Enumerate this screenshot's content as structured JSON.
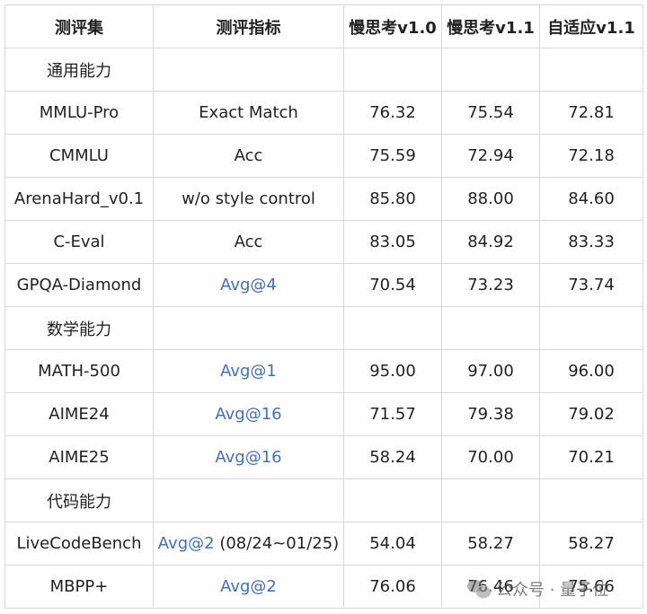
{
  "table": {
    "headers": [
      "测评集",
      "测评指标",
      "慢思考v1.0",
      "慢思考v1.1",
      "自适应v1.1"
    ],
    "rows": [
      {
        "type": "section",
        "label": "通用能力"
      },
      {
        "type": "data",
        "dataset": "MMLU-Pro",
        "metric": "Exact Match",
        "metric_link": false,
        "v10": "76.32",
        "v11": "75.54",
        "adaptive": "72.81"
      },
      {
        "type": "data",
        "dataset": "CMMLU",
        "metric": "Acc",
        "metric_link": false,
        "v10": "75.59",
        "v11": "72.94",
        "adaptive": "72.18"
      },
      {
        "type": "data",
        "dataset": "ArenaHard_v0.1",
        "metric": "w/o style control",
        "metric_link": false,
        "v10": "85.80",
        "v11": "88.00",
        "adaptive": "84.60"
      },
      {
        "type": "data",
        "dataset": "C-Eval",
        "metric": "Acc",
        "metric_link": false,
        "v10": "83.05",
        "v11": "84.92",
        "adaptive": "83.33"
      },
      {
        "type": "data",
        "dataset": "GPQA-Diamond",
        "metric": "Avg@4",
        "metric_link": true,
        "v10": "70.54",
        "v11": "73.23",
        "adaptive": "73.74"
      },
      {
        "type": "section",
        "label": "数学能力"
      },
      {
        "type": "data",
        "dataset": "MATH-500",
        "metric": "Avg@1",
        "metric_link": true,
        "v10": "95.00",
        "v11": "97.00",
        "adaptive": "96.00"
      },
      {
        "type": "data",
        "dataset": "AIME24",
        "metric": "Avg@16",
        "metric_link": true,
        "v10": "71.57",
        "v11": "79.38",
        "adaptive": "79.02"
      },
      {
        "type": "data",
        "dataset": "AIME25",
        "metric": "Avg@16",
        "metric_link": true,
        "v10": "58.24",
        "v11": "70.00",
        "adaptive": "70.21"
      },
      {
        "type": "section",
        "label": "代码能力"
      },
      {
        "type": "data",
        "dataset": "LiveCodeBench",
        "metric": "Avg@2",
        "metric_suffix": " (08/24~01/25)",
        "metric_link": true,
        "v10": "54.04",
        "v11": "58.27",
        "adaptive": "58.27"
      },
      {
        "type": "data",
        "dataset": "MBPP+",
        "metric": "Avg@2",
        "metric_link": true,
        "v10": "76.06",
        "v11": "76.46",
        "adaptive": "75.66"
      }
    ]
  },
  "watermark": {
    "text": "公众号 · 量子位",
    "icon": "wechat-icon"
  },
  "colors": {
    "link": "#3f6fc6",
    "border": "#d9d9d9",
    "text": "#222222"
  }
}
